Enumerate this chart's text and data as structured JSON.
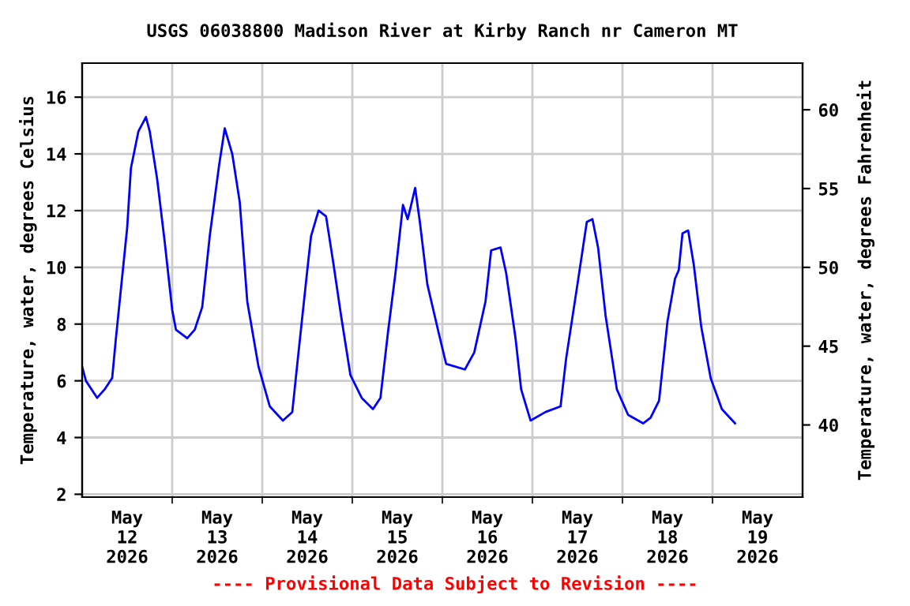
{
  "chart_data": {
    "type": "line",
    "title": "USGS 06038800 Madison River at Kirby Ranch nr Cameron MT",
    "ylabel": "Temperature, water, degrees Celsius",
    "y2label": "Temperature, water, degrees Fahrenheit",
    "annotations": [
      "---- Provisional Data Subject to Revision ----"
    ],
    "x": [
      "2026-05-12T00:00",
      "2026-05-12T01:00",
      "2026-05-12T04:00",
      "2026-05-12T06:00",
      "2026-05-12T08:00",
      "2026-05-12T09:00",
      "2026-05-12T10:00",
      "2026-05-12T12:00",
      "2026-05-12T13:00",
      "2026-05-12T15:00",
      "2026-05-12T17:00",
      "2026-05-12T18:00",
      "2026-05-12T20:00",
      "2026-05-12T22:00",
      "2026-05-13T00:00",
      "2026-05-13T01:00",
      "2026-05-13T04:00",
      "2026-05-13T06:00",
      "2026-05-13T08:00",
      "2026-05-13T10:00",
      "2026-05-13T12:30",
      "2026-05-13T14:00",
      "2026-05-13T16:00",
      "2026-05-13T18:00",
      "2026-05-13T20:00",
      "2026-05-13T23:00",
      "2026-05-14T02:00",
      "2026-05-14T05:30",
      "2026-05-14T08:00",
      "2026-05-14T09:30",
      "2026-05-14T12:00",
      "2026-05-14T13:00",
      "2026-05-14T15:00",
      "2026-05-14T17:00",
      "2026-05-14T19:00",
      "2026-05-14T21:00",
      "2026-05-14T23:30",
      "2026-05-15T02:30",
      "2026-05-15T05:30",
      "2026-05-15T07:30",
      "2026-05-15T09:30",
      "2026-05-15T11:30",
      "2026-05-15T13:30",
      "2026-05-15T14:45",
      "2026-05-15T15:30",
      "2026-05-15T16:45",
      "2026-05-15T18:00",
      "2026-05-15T20:00",
      "2026-05-15T23:00",
      "2026-05-16T01:00",
      "2026-05-16T06:00",
      "2026-05-16T08:30",
      "2026-05-16T11:30",
      "2026-05-16T13:00",
      "2026-05-16T15:30",
      "2026-05-16T17:00",
      "2026-05-16T19:30",
      "2026-05-16T21:00",
      "2026-05-16T23:30",
      "2026-05-17T03:30",
      "2026-05-17T07:30",
      "2026-05-17T09:00",
      "2026-05-17T12:00",
      "2026-05-17T14:30",
      "2026-05-17T16:00",
      "2026-05-17T17:30",
      "2026-05-17T19:30",
      "2026-05-17T22:30",
      "2026-05-18T01:30",
      "2026-05-18T05:30",
      "2026-05-18T07:30",
      "2026-05-18T09:45",
      "2026-05-18T12:00",
      "2026-05-18T14:00",
      "2026-05-18T15:00",
      "2026-05-18T16:00",
      "2026-05-18T17:30",
      "2026-05-18T19:00",
      "2026-05-18T21:00",
      "2026-05-18T23:30",
      "2026-05-19T02:30",
      "2026-05-19T06:00"
    ],
    "series": [
      {
        "color": "#0000ff",
        "values": [
          6.5,
          6.0,
          5.4,
          5.7,
          6.1,
          7.5,
          8.8,
          11.4,
          13.5,
          14.8,
          15.3,
          14.8,
          13.1,
          10.9,
          8.5,
          7.8,
          7.5,
          7.8,
          8.6,
          11.1,
          13.6,
          14.9,
          14.0,
          12.3,
          8.8,
          6.5,
          5.1,
          4.6,
          4.9,
          6.8,
          9.9,
          11.1,
          12.0,
          11.8,
          10.1,
          8.3,
          6.2,
          5.4,
          5.0,
          5.4,
          7.7,
          9.8,
          12.2,
          11.7,
          12.1,
          12.8,
          11.6,
          9.4,
          7.7,
          6.6,
          6.4,
          7.0,
          8.8,
          10.6,
          10.7,
          9.8,
          7.5,
          5.7,
          4.6,
          4.9,
          5.1,
          6.8,
          9.4,
          11.6,
          11.7,
          10.7,
          8.3,
          5.7,
          4.8,
          4.5,
          4.7,
          5.3,
          8.1,
          9.6,
          9.9,
          11.2,
          11.3,
          10.1,
          7.9,
          6.1,
          5.0,
          4.5
        ]
      }
    ],
    "xlim": [
      "2026-05-12T00:00",
      "2026-05-20T00:00"
    ],
    "xticks": [
      {
        "value": "2026-05-12T12:00",
        "label": "May\n12\n2026"
      },
      {
        "value": "2026-05-13T12:00",
        "label": "May\n13\n2026"
      },
      {
        "value": "2026-05-14T12:00",
        "label": "May\n14\n2026"
      },
      {
        "value": "2026-05-15T12:00",
        "label": "May\n15\n2026"
      },
      {
        "value": "2026-05-16T12:00",
        "label": "May\n16\n2026"
      },
      {
        "value": "2026-05-17T12:00",
        "label": "May\n17\n2026"
      },
      {
        "value": "2026-05-18T12:00",
        "label": "May\n18\n2026"
      },
      {
        "value": "2026-05-19T12:00",
        "label": "May\n19\n2026"
      },
      {
        "value": "2026-05-13T00:00",
        "label": null
      },
      {
        "value": "2026-05-14T00:00",
        "label": null
      },
      {
        "value": "2026-05-15T00:00",
        "label": null
      },
      {
        "value": "2026-05-16T00:00",
        "label": null
      },
      {
        "value": "2026-05-17T00:00",
        "label": null
      },
      {
        "value": "2026-05-18T00:00",
        "label": null
      },
      {
        "value": "2026-05-19T00:00",
        "label": null
      }
    ],
    "ylim": [
      1.9,
      17.2
    ],
    "yticks": [
      2,
      4,
      6,
      8,
      10,
      12,
      14,
      16
    ],
    "y2lim": [
      35.42,
      62.96
    ],
    "y2ticks": [
      40,
      45,
      50,
      55,
      60
    ],
    "grid": true,
    "legend": false,
    "marker": "none",
    "line_style": "solid"
  }
}
